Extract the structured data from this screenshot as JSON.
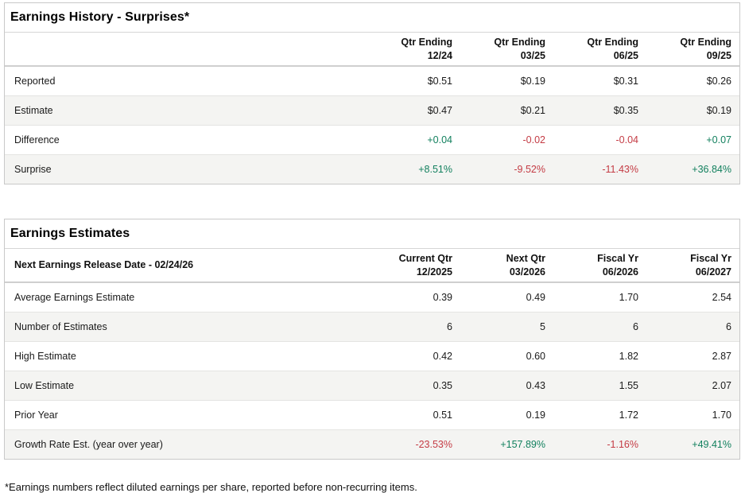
{
  "colors": {
    "positive_value": "#12805e",
    "negative_value": "#c43b44",
    "row_stripe": "#f4f4f2"
  },
  "surprises_table": {
    "title": "Earnings History - Surprises*",
    "columns": [
      {
        "top": "Qtr Ending",
        "bottom": "12/24"
      },
      {
        "top": "Qtr Ending",
        "bottom": "03/25"
      },
      {
        "top": "Qtr Ending",
        "bottom": "06/25"
      },
      {
        "top": "Qtr Ending",
        "bottom": "09/25"
      }
    ],
    "rows": [
      {
        "label": "Reported",
        "values": [
          "$0.51",
          "$0.19",
          "$0.31",
          "$0.26"
        ]
      },
      {
        "label": "Estimate",
        "values": [
          "$0.47",
          "$0.21",
          "$0.35",
          "$0.19"
        ]
      },
      {
        "label": "Difference",
        "values": [
          "+0.04",
          "-0.02",
          "-0.04",
          "+0.07"
        ],
        "tones": [
          "pos",
          "neg",
          "neg",
          "pos"
        ]
      },
      {
        "label": "Surprise",
        "values": [
          "+8.51%",
          "-9.52%",
          "-11.43%",
          "+36.84%"
        ],
        "tones": [
          "pos",
          "neg",
          "neg",
          "pos"
        ]
      }
    ]
  },
  "estimates_table": {
    "title": "Earnings Estimates",
    "header_label": "Next Earnings Release Date - 02/24/26",
    "columns": [
      {
        "top": "Current Qtr",
        "bottom": "12/2025"
      },
      {
        "top": "Next Qtr",
        "bottom": "03/2026"
      },
      {
        "top": "Fiscal Yr",
        "bottom": "06/2026"
      },
      {
        "top": "Fiscal Yr",
        "bottom": "06/2027"
      }
    ],
    "rows": [
      {
        "label": "Average Earnings Estimate",
        "values": [
          "0.39",
          "0.49",
          "1.70",
          "2.54"
        ]
      },
      {
        "label": "Number of Estimates",
        "values": [
          "6",
          "5",
          "6",
          "6"
        ]
      },
      {
        "label": "High Estimate",
        "values": [
          "0.42",
          "0.60",
          "1.82",
          "2.87"
        ]
      },
      {
        "label": "Low Estimate",
        "values": [
          "0.35",
          "0.43",
          "1.55",
          "2.07"
        ]
      },
      {
        "label": "Prior Year",
        "values": [
          "0.51",
          "0.19",
          "1.72",
          "1.70"
        ]
      },
      {
        "label": "Growth Rate Est. (year over year)",
        "values": [
          "-23.53%",
          "+157.89%",
          "-1.16%",
          "+49.41%"
        ],
        "tones": [
          "neg",
          "pos",
          "neg",
          "pos"
        ]
      }
    ]
  },
  "footnote": "*Earnings numbers reflect diluted earnings per share, reported before non-recurring items."
}
